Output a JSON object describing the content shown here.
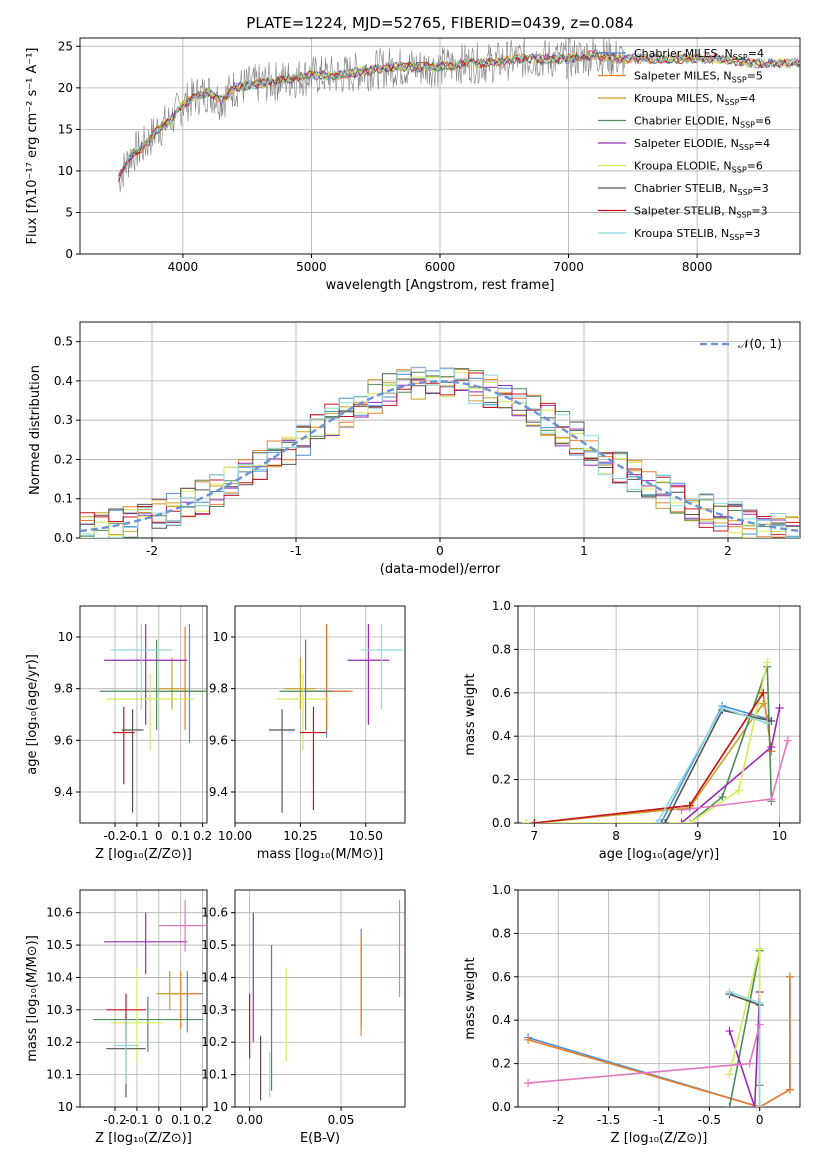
{
  "title": "PLATE=1224, MJD=52765, FIBERID=0439, z=0.084",
  "series": [
    {
      "name": "Chabrier MILES, N",
      "sub": "SSP",
      "suffix": "=4",
      "color": "#4a90d9"
    },
    {
      "name": "Salpeter MILES, N",
      "sub": "SSP",
      "suffix": "=5",
      "color": "#ee7d2c"
    },
    {
      "name": "Kroupa MILES, N",
      "sub": "SSP",
      "suffix": "=4",
      "color": "#c9a227"
    },
    {
      "name": "Chabrier ELODIE, N",
      "sub": "SSP",
      "suffix": "=6",
      "color": "#4f8c5a"
    },
    {
      "name": "Salpeter ELODIE, N",
      "sub": "SSP",
      "suffix": "=4",
      "color": "#9a2ab5"
    },
    {
      "name": "Kroupa ELODIE, N",
      "sub": "SSP",
      "suffix": "=6",
      "color": "#d4ec55"
    },
    {
      "name": "Chabrier STELIB, N",
      "sub": "SSP",
      "suffix": "=3",
      "color": "#555555"
    },
    {
      "name": "Salpeter STELIB, N",
      "sub": "SSP",
      "suffix": "=3",
      "color": "#c8141e"
    },
    {
      "name": "Kroupa STELIB, N",
      "sub": "SSP",
      "suffix": "=3",
      "color": "#8fd8e0"
    }
  ],
  "chart_data": [
    {
      "id": "spectrum",
      "type": "line",
      "ylabel": "Flux [fλ10⁻¹⁷ erg cm⁻² s⁻¹ A⁻¹]",
      "xlabel": "wavelength [Angstrom, rest frame]",
      "xlim": [
        3200,
        8800
      ],
      "ylim": [
        0,
        26
      ],
      "xticks": [
        4000,
        5000,
        6000,
        7000,
        8000
      ],
      "yticks": [
        0,
        5,
        10,
        15,
        20,
        25
      ],
      "data_color": "#808080",
      "x": [
        3500,
        3600,
        3700,
        3800,
        3900,
        4000,
        4100,
        4200,
        4300,
        4400,
        4600,
        4800,
        5000,
        5200,
        5400,
        5600,
        5800,
        6000,
        6200,
        6400,
        6600,
        6800,
        7000,
        7200,
        7400,
        7600,
        7800,
        8000,
        8200,
        8400,
        8600,
        8800
      ],
      "y": [
        9,
        12,
        13,
        15,
        16,
        18,
        19,
        19.5,
        18.5,
        20,
        20.5,
        21,
        21.5,
        21.5,
        22,
        22.5,
        22.5,
        22.5,
        23,
        23,
        23.5,
        23.5,
        23.5,
        24,
        23.5,
        23.5,
        23.5,
        23.5,
        23.5,
        23,
        23,
        23
      ]
    },
    {
      "id": "residuals",
      "type": "histogram",
      "xlabel": "(data-model)/error",
      "ylabel": "Normed distribution",
      "xlim": [
        -2.5,
        2.5
      ],
      "ylim": [
        0,
        0.55
      ],
      "xticks": [
        -2,
        -1,
        0,
        1,
        2
      ],
      "yticks": [
        0.0,
        0.1,
        0.2,
        0.3,
        0.4,
        0.5
      ],
      "gaussian_label": "𝒩(0, 1)",
      "gaussian_color": "#6a93d4"
    },
    {
      "id": "age-vs-Z",
      "type": "errorbar",
      "xlabel": "Z [log₁₀(Z/Z⊙)]",
      "ylabel": "age  [log₁₀(age/yr)]",
      "xlim": [
        -0.36,
        0.22
      ],
      "ylim": [
        9.28,
        10.12
      ],
      "xticks": [
        -0.2,
        -0.1,
        0.0,
        0.1,
        0.2
      ],
      "yticks": [
        9.4,
        9.6,
        9.8,
        10.0
      ],
      "points": [
        {
          "s": 0,
          "x": 0.14,
          "y": 9.79,
          "xerr": 0.06,
          "yerr_lo": 0.2,
          "yerr_hi": 0.26
        },
        {
          "s": 1,
          "x": 0.12,
          "y": 9.79,
          "xerr": 0.08,
          "yerr_lo": 0.15,
          "yerr_hi": 0.25
        },
        {
          "s": 2,
          "x": 0.06,
          "y": 9.8,
          "xerr": 0.06,
          "yerr_lo": 0.08,
          "yerr_hi": 0.12
        },
        {
          "s": 3,
          "x": -0.01,
          "y": 9.79,
          "xerr": 0.26,
          "yerr_lo": 0.15,
          "yerr_hi": 0.2
        },
        {
          "s": 4,
          "x": -0.06,
          "y": 9.91,
          "xerr": 0.19,
          "yerr_lo": 0.25,
          "yerr_hi": 0.14
        },
        {
          "s": 5,
          "x": -0.04,
          "y": 9.76,
          "xerr": 0.2,
          "yerr_lo": 0.2,
          "yerr_hi": 0.1
        },
        {
          "s": 6,
          "x": -0.12,
          "y": 9.64,
          "xerr": 0.05,
          "yerr_lo": 0.32,
          "yerr_hi": 0.08
        },
        {
          "s": 7,
          "x": -0.16,
          "y": 9.63,
          "xerr": 0.05,
          "yerr_lo": 0.2,
          "yerr_hi": 0.1
        },
        {
          "s": 8,
          "x": -0.08,
          "y": 9.95,
          "xerr": 0.14,
          "yerr_lo": 0.23,
          "yerr_hi": 0.1
        }
      ]
    },
    {
      "id": "age-vs-mass",
      "type": "errorbar",
      "xlabel": "mass [log₁₀(M/M⊙)]",
      "ylabel": "",
      "xlim": [
        10.0,
        10.65
      ],
      "ylim": [
        9.28,
        10.12
      ],
      "xticks": [
        10.0,
        10.25,
        10.5
      ],
      "xticklabels": [
        "10.00",
        "10.25",
        "10.50"
      ],
      "yticks": [
        9.4,
        9.6,
        9.8,
        10.0
      ],
      "points": [
        {
          "s": 0,
          "x": 10.35,
          "y": 9.79,
          "xerr": 0.08,
          "yerr_lo": 0.18,
          "yerr_hi": 0.26
        },
        {
          "s": 1,
          "x": 10.35,
          "y": 9.79,
          "xerr": 0.1,
          "yerr_lo": 0.15,
          "yerr_hi": 0.26
        },
        {
          "s": 2,
          "x": 10.25,
          "y": 9.8,
          "xerr": 0.06,
          "yerr_lo": 0.08,
          "yerr_hi": 0.12
        },
        {
          "s": 3,
          "x": 10.27,
          "y": 9.79,
          "xerr": 0.1,
          "yerr_lo": 0.15,
          "yerr_hi": 0.2
        },
        {
          "s": 4,
          "x": 10.51,
          "y": 9.91,
          "xerr": 0.08,
          "yerr_lo": 0.25,
          "yerr_hi": 0.14
        },
        {
          "s": 5,
          "x": 10.26,
          "y": 9.76,
          "xerr": 0.1,
          "yerr_lo": 0.2,
          "yerr_hi": 0.1
        },
        {
          "s": 6,
          "x": 10.18,
          "y": 9.64,
          "xerr": 0.05,
          "yerr_lo": 0.32,
          "yerr_hi": 0.08
        },
        {
          "s": 7,
          "x": 10.3,
          "y": 9.63,
          "xerr": 0.05,
          "yerr_lo": 0.3,
          "yerr_hi": 0.1
        },
        {
          "s": 8,
          "x": 10.56,
          "y": 9.95,
          "xerr": 0.08,
          "yerr_lo": 0.23,
          "yerr_hi": 0.1
        }
      ]
    },
    {
      "id": "mass-weight-vs-age",
      "type": "line",
      "xlabel": "age  [log₁₀(age/yr)]",
      "ylabel": "mass weight",
      "xlim": [
        6.8,
        10.25
      ],
      "ylim": [
        0,
        1
      ],
      "xticks": [
        7,
        8,
        9,
        10
      ],
      "yticks": [
        0.0,
        0.2,
        0.4,
        0.6,
        0.8,
        1.0
      ],
      "lines": [
        {
          "s": 0,
          "x": [
            8.55,
            9.3,
            9.85
          ],
          "y": [
            0.0,
            0.54,
            0.48
          ]
        },
        {
          "s": 1,
          "x": [
            7.0,
            8.9,
            9.8,
            9.9
          ],
          "y": [
            0.0,
            0.08,
            0.6,
            0.33
          ]
        },
        {
          "s": 2,
          "x": [
            7.0,
            8.9,
            9.8
          ],
          "y": [
            0.0,
            0.07,
            0.55
          ]
        },
        {
          "s": 3,
          "x": [
            8.9,
            9.3,
            9.85,
            9.9
          ],
          "y": [
            0.0,
            0.12,
            0.72,
            0.1
          ]
        },
        {
          "s": 4,
          "x": [
            8.8,
            9.9,
            10.0
          ],
          "y": [
            0.0,
            0.35,
            0.53
          ]
        },
        {
          "s": 5,
          "x": [
            6.9,
            8.9,
            9.5,
            9.85
          ],
          "y": [
            0.0,
            0.0,
            0.15,
            0.74
          ]
        },
        {
          "s": 6,
          "x": [
            8.6,
            9.3,
            9.9
          ],
          "y": [
            0.0,
            0.52,
            0.47
          ]
        },
        {
          "s": 7,
          "x": [
            7.0,
            8.9,
            9.8
          ],
          "y": [
            0.0,
            0.08,
            0.6
          ]
        },
        {
          "s": 8,
          "x": [
            8.5,
            9.3,
            9.85
          ],
          "y": [
            0.0,
            0.53,
            0.46
          ]
        },
        {
          "s": 9,
          "x": [
            8.8,
            9.9,
            10.1
          ],
          "y": [
            0.06,
            0.11,
            0.38
          ]
        }
      ]
    },
    {
      "id": "mass-vs-Z",
      "type": "errorbar",
      "xlabel": "Z [log₁₀(Z/Z⊙)]",
      "ylabel": "mass [log₁₀(M/M⊙)]",
      "xlim": [
        -0.36,
        0.22
      ],
      "ylim": [
        10.0,
        10.67
      ],
      "xticks": [
        -0.2,
        -0.1,
        0.0,
        0.1,
        0.2
      ],
      "yticks": [
        10.0,
        10.1,
        10.2,
        10.3,
        10.4,
        10.5,
        10.6
      ],
      "points": [
        {
          "s": 0,
          "x": 0.13,
          "y": 10.35,
          "xerr": 0.07,
          "yerr_lo": 0.12,
          "yerr_hi": 0.07
        },
        {
          "s": 1,
          "x": 0.1,
          "y": 10.35,
          "xerr": 0.09,
          "yerr_lo": 0.11,
          "yerr_hi": 0.07
        },
        {
          "s": 2,
          "x": 0.05,
          "y": 10.35,
          "xerr": 0.06,
          "yerr_lo": 0.05,
          "yerr_hi": 0.07
        },
        {
          "s": 3,
          "x": -0.05,
          "y": 10.27,
          "xerr": 0.25,
          "yerr_lo": 0.1,
          "yerr_hi": 0.07
        },
        {
          "s": 4,
          "x": -0.06,
          "y": 10.51,
          "xerr": 0.19,
          "yerr_lo": 0.1,
          "yerr_hi": 0.09
        },
        {
          "s": 5,
          "x": -0.1,
          "y": 10.26,
          "xerr": 0.12,
          "yerr_lo": 0.12,
          "yerr_hi": 0.17
        },
        {
          "s": 6,
          "x": -0.15,
          "y": 10.18,
          "xerr": 0.09,
          "yerr_lo": 0.15,
          "yerr_hi": 0.1
        },
        {
          "s": 7,
          "x": -0.15,
          "y": 10.3,
          "xerr": 0.09,
          "yerr_lo": 0.1,
          "yerr_hi": 0.05
        },
        {
          "s": 8,
          "x": -0.15,
          "y": 10.19,
          "xerr": 0.06,
          "yerr_lo": 0.12,
          "yerr_hi": 0.08
        },
        {
          "s": 9,
          "x": 0.12,
          "y": 10.56,
          "xerr": 0.12,
          "yerr_lo": 0.08,
          "yerr_hi": 0.08
        }
      ]
    },
    {
      "id": "mass-vs-ebv",
      "type": "errorbar",
      "xlabel": "E(B-V)",
      "ylabel": "",
      "xlim": [
        -0.008,
        0.085
      ],
      "ylim": [
        10.0,
        10.67
      ],
      "xticks": [
        0.0,
        0.05
      ],
      "xticklabels": [
        "0.00",
        "0.05"
      ],
      "yticks": [
        10.0,
        10.1,
        10.2,
        10.3,
        10.4,
        10.5,
        10.6
      ],
      "points": [
        {
          "s": 0,
          "x": 0.061,
          "y": 10.4,
          "xerr": 0,
          "yerr_lo": 0.15,
          "yerr_hi": 0.15
        },
        {
          "s": 1,
          "x": 0.061,
          "y": 10.38,
          "xerr": 0,
          "yerr_lo": 0.16,
          "yerr_hi": 0.15
        },
        {
          "s": 3,
          "x": 0.012,
          "y": 10.4,
          "xerr": 0,
          "yerr_lo": 0.35,
          "yerr_hi": 0.1
        },
        {
          "s": 4,
          "x": 0.002,
          "y": 10.45,
          "xerr": 0,
          "yerr_lo": 0.25,
          "yerr_hi": 0.15
        },
        {
          "s": 5,
          "x": 0.02,
          "y": 10.28,
          "xerr": 0,
          "yerr_lo": 0.14,
          "yerr_hi": 0.15
        },
        {
          "s": 6,
          "x": 0.006,
          "y": 10.12,
          "xerr": 0,
          "yerr_lo": 0.1,
          "yerr_hi": 0.1
        },
        {
          "s": 7,
          "x": 0.0,
          "y": 10.25,
          "xerr": 0,
          "yerr_lo": 0.1,
          "yerr_hi": 0.1
        },
        {
          "s": 8,
          "x": 0.011,
          "y": 10.1,
          "xerr": 0,
          "yerr_lo": 0.07,
          "yerr_hi": 0.07
        },
        {
          "s": 9,
          "x": 0.082,
          "y": 10.49,
          "xerr": 0,
          "yerr_lo": 0.15,
          "yerr_hi": 0.15
        }
      ]
    },
    {
      "id": "mass-weight-vs-Z",
      "type": "line",
      "xlabel": "Z [log₁₀(Z/Z⊙)]",
      "ylabel": "mass weight",
      "xlim": [
        -2.4,
        0.4
      ],
      "ylim": [
        0,
        1
      ],
      "xticks": [
        -2.0,
        -1.5,
        -1.0,
        -0.5,
        0.0
      ],
      "yticks": [
        0.0,
        0.2,
        0.4,
        0.6,
        0.8,
        1.0
      ],
      "lines": [
        {
          "s": 0,
          "x": [
            -2.3,
            0.0,
            0.3,
            0.3
          ],
          "y": [
            0.32,
            0.0,
            0.08,
            0.6
          ]
        },
        {
          "s": 1,
          "x": [
            -2.3,
            0.0,
            0.3,
            0.3
          ],
          "y": [
            0.31,
            0.0,
            0.08,
            0.6
          ]
        },
        {
          "s": 3,
          "x": [
            -0.3,
            0.0,
            0.0
          ],
          "y": [
            0.0,
            0.72,
            0.1
          ]
        },
        {
          "s": 4,
          "x": [
            -0.3,
            -0.05,
            0.0
          ],
          "y": [
            0.35,
            0.0,
            0.53
          ]
        },
        {
          "s": 5,
          "x": [
            -0.3,
            0.0,
            0.0
          ],
          "y": [
            0.15,
            0.73,
            0.0
          ]
        },
        {
          "s": 6,
          "x": [
            -0.3,
            0.0,
            0.0
          ],
          "y": [
            0.52,
            0.47,
            0.0
          ]
        },
        {
          "s": 8,
          "x": [
            -0.3,
            0.0,
            0.0
          ],
          "y": [
            0.53,
            0.48,
            0.0
          ]
        },
        {
          "s": 9,
          "x": [
            -2.3,
            -0.1,
            0.0
          ],
          "y": [
            0.11,
            0.2,
            0.38
          ]
        }
      ]
    }
  ]
}
